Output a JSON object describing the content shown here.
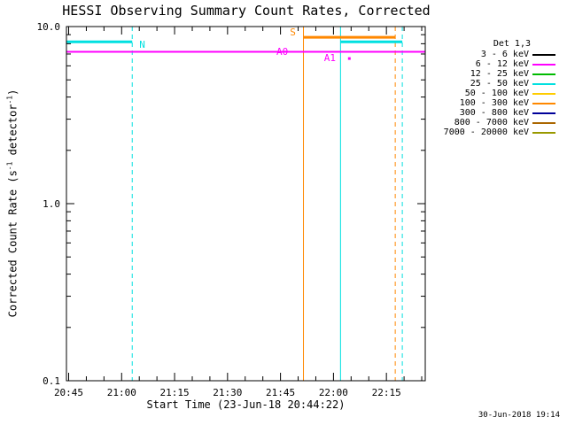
{
  "timestamp": "30-Jun-2018 19:14",
  "legend": {
    "header": "Det 1,3",
    "items": [
      {
        "label": "3 - 6 keV",
        "color": "#000000"
      },
      {
        "label": "6 - 12 keV",
        "color": "#ff00ff"
      },
      {
        "label": "12 - 25 keV",
        "color": "#00bb00"
      },
      {
        "label": "25 - 50 keV",
        "color": "#00e0e0"
      },
      {
        "label": "50 - 100 keV",
        "color": "#ffcc00"
      },
      {
        "label": "100 - 300 keV",
        "color": "#ff8800"
      },
      {
        "label": "300 - 800 keV",
        "color": "#000099"
      },
      {
        "label": "800 - 7000 keV",
        "color": "#aa6600"
      },
      {
        "label": "7000 - 20000 keV",
        "color": "#999900"
      }
    ]
  },
  "chart_data": {
    "type": "line",
    "title": "HESSI Observing Summary Count Rates, Corrected",
    "xlabel": "Start Time (23-Jun-18 20:44:22)",
    "ylabel": "Corrected Count Rate (s-1 detector-1)",
    "ylabel_parts": {
      "pre": "Corrected Count Rate (s",
      "sup1": "-1",
      "mid": " detector",
      "sup2": "-1",
      "post": ")"
    },
    "x_axis": {
      "unit": "minutes-after-20:00",
      "start_minutes": 44.37,
      "end_minutes": 146,
      "minor_step": 5,
      "major_ticks": [
        {
          "t": 45,
          "label": "20:45"
        },
        {
          "t": 60,
          "label": "21:00"
        },
        {
          "t": 75,
          "label": "21:15"
        },
        {
          "t": 90,
          "label": "21:30"
        },
        {
          "t": 105,
          "label": "21:45"
        },
        {
          "t": 120,
          "label": "22:00"
        },
        {
          "t": 135,
          "label": "22:15"
        }
      ]
    },
    "y_axis": {
      "scale": "log",
      "min": 0.1,
      "max": 10,
      "major_ticks": [
        {
          "v": 10,
          "label": "10.0"
        },
        {
          "v": 1,
          "label": "1.0"
        },
        {
          "v": 0.1,
          "label": "0.1"
        }
      ]
    },
    "flag_segments": [
      {
        "name": "night-flag-1",
        "color": "#00e0e0",
        "y": 8.2,
        "t0": 44.37,
        "t1": 63,
        "width": 3
      },
      {
        "name": "night-flag-2",
        "color": "#00e0e0",
        "y": 8.2,
        "t0": 122,
        "t1": 139.5,
        "width": 3
      },
      {
        "name": "attenuator-flag",
        "color": "#ff00ff",
        "y": 7.2,
        "t0": 44.37,
        "t1": 146,
        "width": 2
      },
      {
        "name": "saa-flag",
        "color": "#ff8800",
        "y": 8.7,
        "t0": 111.5,
        "t1": 137.5,
        "width": 3
      }
    ],
    "vlines": [
      {
        "name": "night-end-boundary",
        "t": 63,
        "color": "#00e0e0",
        "style": "dashed"
      },
      {
        "name": "saa-start-boundary",
        "t": 111.5,
        "color": "#ff8800",
        "style": "solid"
      },
      {
        "name": "night-start-boundary",
        "t": 122,
        "color": "#00e0e0",
        "style": "solid"
      },
      {
        "name": "saa-end-boundary",
        "t": 137.5,
        "color": "#ff8800",
        "style": "dashed"
      },
      {
        "name": "night-end-boundary-2",
        "t": 139.5,
        "color": "#00e0e0",
        "style": "dashed"
      }
    ],
    "annotations": [
      {
        "text": "N",
        "t": 65,
        "v": 7.6,
        "color": "#00e0e0",
        "anchor": "start"
      },
      {
        "text": "S",
        "t": 108.5,
        "v": 8.9,
        "color": "#ff8800",
        "anchor": "middle"
      },
      {
        "text": "A0",
        "t": 105.5,
        "v": 6.9,
        "color": "#ff00ff",
        "anchor": "middle"
      },
      {
        "text": "A1",
        "t": 119,
        "v": 6.4,
        "color": "#ff00ff",
        "anchor": "middle"
      },
      {
        "type": "point",
        "t": 124.5,
        "v": 6.6,
        "color": "#ff00ff"
      }
    ]
  }
}
